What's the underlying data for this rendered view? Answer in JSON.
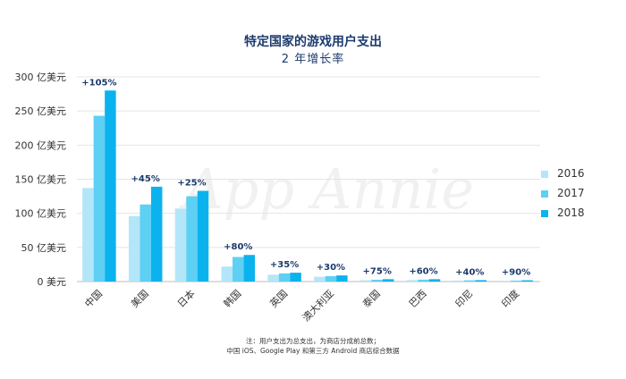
{
  "title": "特定国家的游戏用户支出",
  "subtitle": "2 年增长率",
  "watermark": "App Annie",
  "note_line1": "注：用户支出为总支出，为商店分成前总数；",
  "note_line2": "中国 iOS、Google Play 和第三方 Android 商店综合数据",
  "colors": {
    "2016": "#b3e6f8",
    "2017": "#5dd0f4",
    "2018": "#0bb3ee",
    "growth_label": "#1c3b6e"
  },
  "chart_data": {
    "type": "bar",
    "categories": [
      "中国",
      "美国",
      "日本",
      "韩国",
      "英国",
      "澳大利亚",
      "泰国",
      "巴西",
      "印尼",
      "印度"
    ],
    "series": [
      {
        "name": "2016",
        "values": [
          137,
          96,
          107,
          22,
          10,
          7,
          2.0,
          2.2,
          1.5,
          1.0
        ]
      },
      {
        "name": "2017",
        "values": [
          243,
          113,
          125,
          36,
          12,
          8,
          2.7,
          2.8,
          1.8,
          1.4
        ]
      },
      {
        "name": "2018",
        "values": [
          280,
          139,
          133,
          39,
          13,
          9,
          3.5,
          3.5,
          2.1,
          1.9
        ]
      }
    ],
    "growth_labels": [
      "+105%",
      "+45%",
      "+25%",
      "+80%",
      "+35%",
      "+30%",
      "+75%",
      "+60%",
      "+40%",
      "+90%"
    ],
    "y_ticks": [
      {
        "value": 0,
        "label": "0 美元"
      },
      {
        "value": 50,
        "label": "50 亿美元"
      },
      {
        "value": 100,
        "label": "100 亿美元"
      },
      {
        "value": 150,
        "label": "150 亿美元"
      },
      {
        "value": 200,
        "label": "200 亿美元"
      },
      {
        "value": 250,
        "label": "250 亿美元"
      },
      {
        "value": 300,
        "label": "300 亿美元"
      }
    ],
    "ylim": [
      0,
      300
    ],
    "grid": true,
    "legend_position": "right"
  }
}
